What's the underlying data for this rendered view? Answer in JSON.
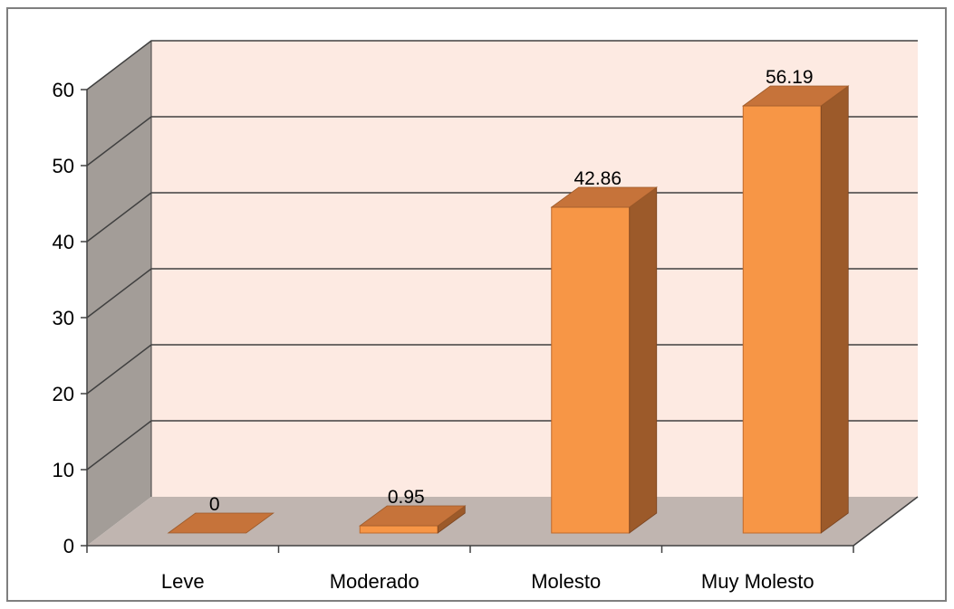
{
  "chart_data": {
    "type": "bar",
    "categories": [
      "Leve",
      "Moderado",
      "Molesto",
      "Muy Molesto"
    ],
    "values": [
      0,
      0.95,
      42.86,
      56.19
    ],
    "data_labels": [
      "0",
      "0.95",
      "42.86",
      "56.19"
    ],
    "title": "",
    "xlabel": "",
    "ylabel": "",
    "ylim": [
      0,
      60
    ],
    "yticks": [
      "0",
      "10",
      "20",
      "30",
      "40",
      "50",
      "60"
    ],
    "grid": true,
    "legend": "none",
    "style": "3d-column"
  },
  "colors": {
    "bar_front": "#f79646",
    "bar_side": "#9c5a2a",
    "bar_top": "#c6733a",
    "back_wall": "#fdeae2",
    "side_wall": "#a39d98",
    "floor": "#c0b5b0",
    "gridline": "#404040",
    "frame": "#7f7f7f"
  }
}
